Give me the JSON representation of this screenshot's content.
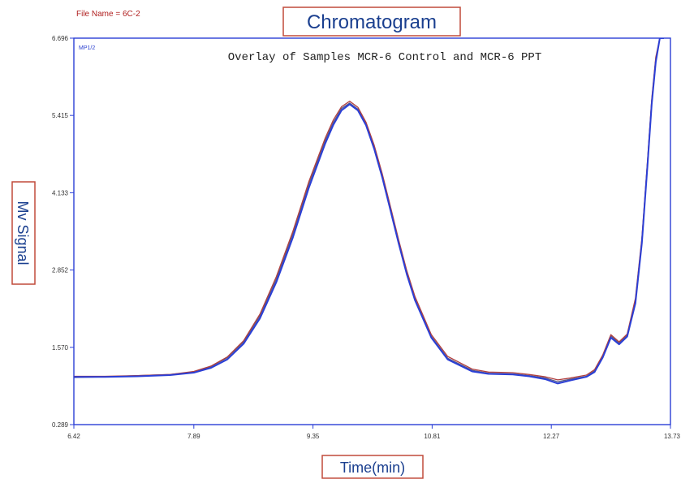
{
  "file_name": "File Name = 6C-2",
  "chart_data": {
    "type": "line",
    "title": "Chromatogram",
    "subtitle": "Overlay of Samples MCR-6 Control and MCR-6 PPT",
    "xlabel": "Time(min)",
    "ylabel": "Mv Signal",
    "corner_label": "MP1/2",
    "xlim": [
      6.42,
      13.73
    ],
    "ylim": [
      0.289,
      6.696
    ],
    "x_ticks": [
      "6.42",
      "7.89",
      "9.35",
      "10.81",
      "12.27",
      "13.73"
    ],
    "y_ticks": [
      "0.289",
      "1.570",
      "2.852",
      "4.133",
      "5.415",
      "6.696"
    ],
    "grid": false,
    "colors": {
      "axis": "#2b3fd6",
      "series_blue": "#2b3fd6",
      "series_dark": "#555b8a",
      "series_red": "#b04040",
      "frame": "#c04a3a"
    },
    "series": [
      {
        "color": "#2b3fd6",
        "x": [
          6.42,
          6.8,
          7.2,
          7.6,
          7.89,
          8.1,
          8.3,
          8.5,
          8.7,
          8.9,
          9.1,
          9.3,
          9.5,
          9.6,
          9.7,
          9.8,
          9.9,
          10.0,
          10.1,
          10.2,
          10.3,
          10.4,
          10.5,
          10.6,
          10.8,
          11.0,
          11.3,
          11.5,
          11.8,
          12.0,
          12.2,
          12.35,
          12.5,
          12.7,
          12.8,
          12.9,
          13.0,
          13.1,
          13.2,
          13.3,
          13.38,
          13.45,
          13.5,
          13.55,
          13.6,
          13.65
        ],
        "y": [
          1.08,
          1.08,
          1.09,
          1.11,
          1.15,
          1.23,
          1.37,
          1.63,
          2.05,
          2.65,
          3.38,
          4.22,
          4.95,
          5.26,
          5.5,
          5.6,
          5.5,
          5.25,
          4.86,
          4.38,
          3.84,
          3.29,
          2.78,
          2.35,
          1.73,
          1.37,
          1.17,
          1.13,
          1.12,
          1.09,
          1.04,
          0.97,
          1.02,
          1.08,
          1.16,
          1.4,
          1.73,
          1.62,
          1.75,
          2.3,
          3.3,
          4.6,
          5.6,
          6.3,
          6.696,
          6.696
        ]
      },
      {
        "color": "#555b8a",
        "x": [
          6.42,
          6.8,
          7.2,
          7.6,
          7.89,
          8.1,
          8.3,
          8.5,
          8.7,
          8.9,
          9.1,
          9.3,
          9.5,
          9.6,
          9.7,
          9.8,
          9.9,
          10.0,
          10.1,
          10.2,
          10.3,
          10.4,
          10.5,
          10.6,
          10.8,
          11.0,
          11.3,
          11.5,
          11.8,
          12.0,
          12.2,
          12.35,
          12.5,
          12.7,
          12.8,
          12.9,
          13.0,
          13.1,
          13.2,
          13.3,
          13.38,
          13.45,
          13.5,
          13.55,
          13.6,
          13.65
        ],
        "y": [
          1.07,
          1.08,
          1.1,
          1.12,
          1.16,
          1.25,
          1.4,
          1.66,
          2.09,
          2.7,
          3.44,
          4.28,
          5.0,
          5.3,
          5.53,
          5.62,
          5.52,
          5.27,
          4.88,
          4.4,
          3.86,
          3.31,
          2.8,
          2.37,
          1.75,
          1.39,
          1.19,
          1.14,
          1.13,
          1.1,
          1.06,
          1.0,
          1.04,
          1.09,
          1.18,
          1.42,
          1.76,
          1.64,
          1.77,
          2.35,
          3.35,
          4.65,
          5.65,
          6.35,
          6.696,
          6.696
        ]
      },
      {
        "color": "#b04040",
        "x": [
          6.42,
          6.8,
          7.2,
          7.6,
          7.89,
          8.1,
          8.3,
          8.5,
          8.7,
          8.9,
          9.1,
          9.3,
          9.5,
          9.6,
          9.7,
          9.8,
          9.9,
          10.0,
          10.1,
          10.2,
          10.3,
          10.4,
          10.5,
          10.6,
          10.8,
          11.0,
          11.3,
          11.5,
          11.8,
          12.0,
          12.2,
          12.35,
          12.5,
          12.7,
          12.8,
          12.9,
          13.0,
          13.1,
          13.2,
          13.3,
          13.38,
          13.45,
          13.5,
          13.55,
          13.6,
          13.65
        ],
        "y": [
          1.09,
          1.09,
          1.1,
          1.12,
          1.17,
          1.26,
          1.41,
          1.68,
          2.12,
          2.74,
          3.48,
          4.32,
          5.04,
          5.34,
          5.56,
          5.65,
          5.55,
          5.3,
          4.92,
          4.44,
          3.9,
          3.35,
          2.84,
          2.41,
          1.78,
          1.42,
          1.21,
          1.16,
          1.15,
          1.12,
          1.08,
          1.03,
          1.06,
          1.11,
          1.2,
          1.44,
          1.78,
          1.66,
          1.79,
          2.38,
          3.38,
          4.68,
          5.68,
          6.38,
          6.696,
          6.696
        ]
      }
    ]
  }
}
